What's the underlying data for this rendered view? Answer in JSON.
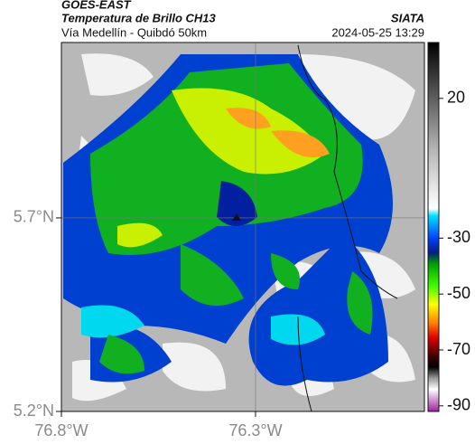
{
  "chart_data": {
    "type": "map",
    "title": "GOES-EAST",
    "subtitle": "Temperatura de Brillo CH13",
    "source": "SIATA",
    "region": "Vía Medellín - Quibdó 50km",
    "datetime": "2024-05-25 13:29",
    "xlim": [
      -76.8,
      -75.865
    ],
    "ylim": [
      5.2,
      6.153
    ],
    "xticks": [
      {
        "value": -76.8,
        "label": "76.8°W"
      },
      {
        "value": -76.3,
        "label": "76.3°W"
      }
    ],
    "yticks": [
      {
        "value": 5.2,
        "label": "5.2°N"
      },
      {
        "value": 5.7,
        "label": "5.7°N"
      }
    ],
    "grid": true,
    "colorbar": {
      "clim": [
        -92,
        40
      ],
      "ticks": [
        20,
        -30,
        -50,
        -70,
        -90
      ]
    }
  }
}
